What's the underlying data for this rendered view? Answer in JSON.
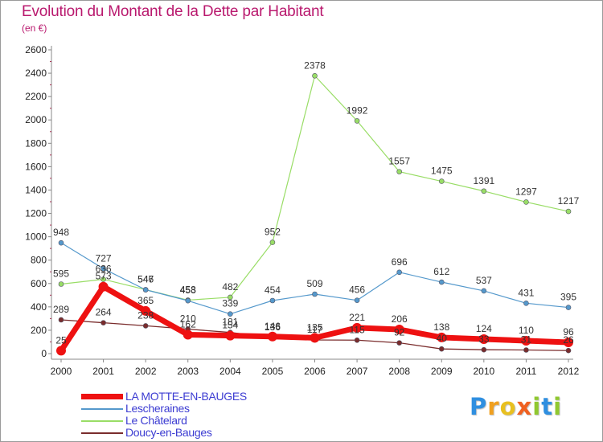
{
  "header": {
    "title": "Evolution du Montant de la Dette par Habitant",
    "subtitle": "(en €)"
  },
  "logo": {
    "text": "Proxiti",
    "letters": [
      {
        "ch": "P",
        "color": "#2f8fe0"
      },
      {
        "ch": "r",
        "color": "#f0a020"
      },
      {
        "ch": "o",
        "color": "#e8c020"
      },
      {
        "ch": "x",
        "color": "#f06020"
      },
      {
        "ch": "i",
        "color": "#90c830"
      },
      {
        "ch": "t",
        "color": "#2f8fe0"
      },
      {
        "ch": "i",
        "color": "#90c830"
      }
    ]
  },
  "chart_data": {
    "type": "line",
    "title": "Evolution du Montant de la Dette par Habitant",
    "subtitle": "(en €)",
    "xlabel": "",
    "ylabel": "",
    "x": [
      "2000",
      "2001",
      "2002",
      "2003",
      "2004",
      "2005",
      "2006",
      "2007",
      "2008",
      "2009",
      "2010",
      "2011",
      "2012"
    ],
    "ylim": [
      0,
      2600
    ],
    "yticks": [
      "0",
      "200",
      "400",
      "600",
      "800",
      "1000",
      "1200",
      "1400",
      "1600",
      "1800",
      "2000",
      "2200",
      "2400",
      "2600"
    ],
    "grid": false,
    "legend_position": "bottom-left",
    "series": [
      {
        "name": "LA MOTTE-EN-BAUGES",
        "color": "#ee1111",
        "values": [
          25,
          573,
          365,
          162,
          154,
          146,
          135,
          221,
          206,
          138,
          124,
          110,
          96
        ],
        "labels": [
          "25",
          "573",
          "365",
          "162",
          "154",
          "146",
          "135",
          "221",
          "206",
          "138",
          "124",
          "110",
          "96"
        ]
      },
      {
        "name": "Lescheraines",
        "color": "#5599cc",
        "values": [
          948,
          727,
          546,
          453,
          339,
          454,
          509,
          456,
          696,
          612,
          537,
          431,
          395
        ],
        "labels": [
          "948",
          "727",
          "546",
          "453",
          "339",
          "454",
          "509",
          "456",
          "696",
          "612",
          "537",
          "431",
          "395"
        ]
      },
      {
        "name": "Le Châtelard",
        "color": "#99dd66",
        "values": [
          595,
          636,
          547,
          458,
          482,
          952,
          2378,
          1992,
          1557,
          1475,
          1391,
          1297,
          1217
        ],
        "labels": [
          "595",
          "636",
          "547",
          "458",
          "482",
          "952",
          "2378",
          "1992",
          "1557",
          "1475",
          "1391",
          "1297",
          "1217"
        ]
      },
      {
        "name": "Doucy-en-Bauges",
        "color": "#7a2c2c",
        "values": [
          289,
          264,
          238,
          210,
          181,
          136,
          117,
          115,
          92,
          40,
          33,
          31,
          26
        ],
        "labels": [
          "289",
          "264",
          "238",
          "210",
          "181",
          "136",
          "117",
          "115",
          "92",
          "40",
          "33",
          "31",
          "26"
        ]
      }
    ]
  }
}
